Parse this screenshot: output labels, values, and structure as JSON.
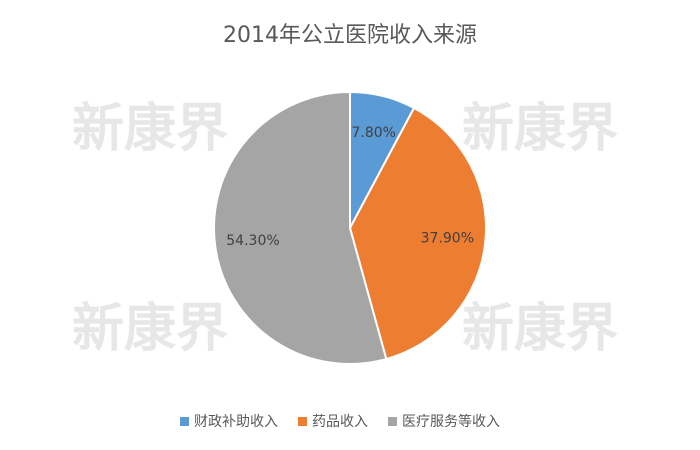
{
  "chart_data": {
    "type": "pie",
    "title": "2014年公立医院收入来源",
    "categories": [
      "财政补助收入",
      "药品收入",
      "医疗服务等收入"
    ],
    "values": [
      7.8,
      37.9,
      54.3
    ],
    "value_labels": [
      "7.80%",
      "37.90%",
      "54.30%"
    ],
    "colors": [
      "#5b9bd5",
      "#ed7d31",
      "#a5a5a5"
    ],
    "legend": "bottom",
    "watermark": "新康界"
  }
}
